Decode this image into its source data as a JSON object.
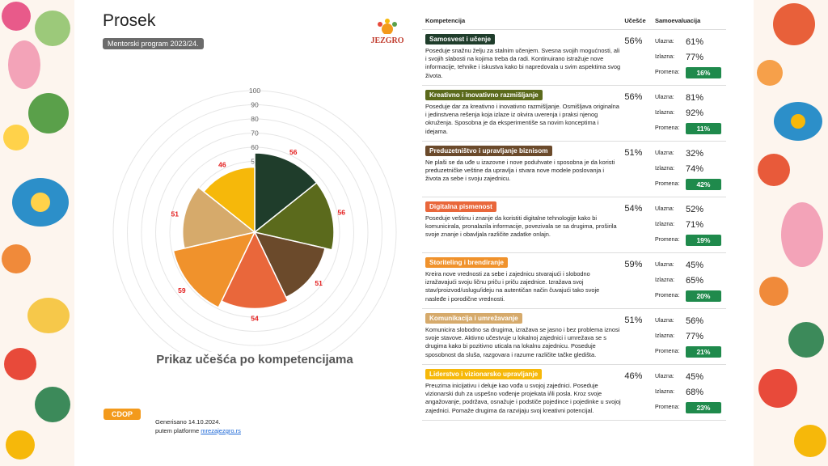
{
  "header": {
    "title": "Prosek",
    "badge": "Mentorski program 2023/24.",
    "logo": "JEZGRO"
  },
  "chart_data": {
    "type": "polar-area",
    "title": "Prikaz učešća po kompetencijama",
    "categories": [
      "Samosvest i učenje",
      "Kreativno i inovativno razmišljanje",
      "Preduzetništvo i upravljanje biznisom",
      "Digitalna pismenost",
      "Storiteling i brendiranje",
      "Komunikacija i umrežavanje",
      "Liderstvo i vizionarsko upravljanje"
    ],
    "values": [
      56,
      56,
      51,
      54,
      59,
      51,
      46
    ],
    "colors": [
      "#1f3d2b",
      "#5b6a1c",
      "#6b4a2b",
      "#e9673b",
      "#f0922c",
      "#d6aa6b",
      "#f6b80a"
    ],
    "rlim": [
      0,
      100
    ],
    "rticks": [
      10,
      20,
      30,
      40,
      50,
      60,
      70,
      80,
      90,
      100
    ]
  },
  "table": {
    "columns": [
      "Kompetencija",
      "Učešće",
      "Samoevaluacija"
    ],
    "labels": {
      "entry": "Ulazna:",
      "exit": "Izlazna:",
      "change": "Promena:"
    },
    "rows": [
      {
        "description": "Poseduje snažnu želju za stalnim učenjem. Svesna svojih mogućnosti, ali i svojih slabosti na kojima treba da radi. Kontinuirano istražuje nove informacije, tehnike i iskustva kako bi napredovala u svim aspektima svog života.",
        "participation": "56%",
        "entry": "61%",
        "exit": "77%",
        "change": "16%"
      },
      {
        "description": "Poseduje dar za kreativno i inovativno razmišljanje. Osmišljava originalna i jedinstvena rešenja koja izlaze iz okvira uverenja i praksi njenog okruženja. Sposobna je da eksperimentiše sa novim konceptima i idejama.",
        "participation": "56%",
        "entry": "81%",
        "exit": "92%",
        "change": "11%"
      },
      {
        "description": "Ne plaši se da uđe u izazovne i nove poduhvate i sposobna je da koristi preduzetničke veštine da upravlja i stvara nove modele poslovanja i života za sebe i svoju zajednicu.",
        "participation": "51%",
        "entry": "32%",
        "exit": "74%",
        "change": "42%"
      },
      {
        "description": "Poseduje veštinu i znanje da koristiti digitalne tehnologije kako bi komunicirala, pronalazila informacije, povezivala se sa drugima, proširila svoje znanje i obavljala različite zadatke onlajn.",
        "participation": "54%",
        "entry": "52%",
        "exit": "71%",
        "change": "19%"
      },
      {
        "description": "Kreira nove vrednosti za sebe i zajednicu stvarajući i slobodno izražavajući svoju ličnu priču i priču zajednice. Izražava svoj stav/proizvod/uslugu/ideju na autentičan način čuvajući tako svoje nasleđe i porodične vrednosti.",
        "participation": "59%",
        "entry": "45%",
        "exit": "65%",
        "change": "20%"
      },
      {
        "description": "Komunicira slobodno sa drugima, izražava se jasno i bez problema iznosi svoje stavove. Aktivno učestvuje u lokalnoj zajednici i umrežava se s drugima kako bi pozitivno uticala na lokalnu zajednicu. Poseduje sposobnost da sluša, razgovara i razume različite tačke gledišta.",
        "participation": "51%",
        "entry": "56%",
        "exit": "77%",
        "change": "21%"
      },
      {
        "description": "Preuzima inicijativu i deluje kao vođa u svojoj zajednici. Poseduje vizionarski duh za uspešno vođenje projekata i/ili posla. Kroz svoje angažovanje, podržava, osnažuje i podstiče pojedince i pojedinke u svojoj zajednici. Pomaže drugima da razvijaju svoj kreativni potencijal.",
        "participation": "46%",
        "entry": "45%",
        "exit": "68%",
        "change": "23%"
      }
    ]
  },
  "footer": {
    "generated": "Generisano 14.10.2024.",
    "via": "putem platforme",
    "link": "mrezajezgro.rs",
    "logo": "CDOP"
  }
}
